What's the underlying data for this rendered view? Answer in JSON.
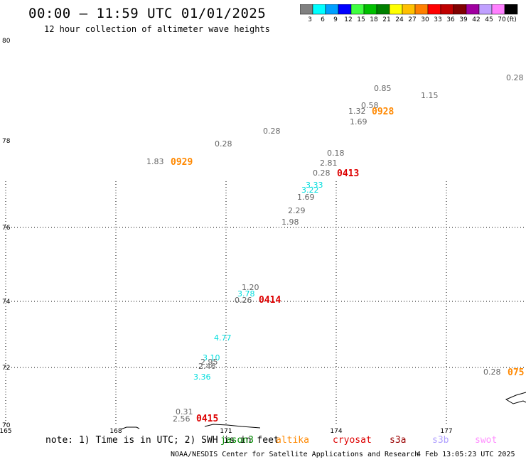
{
  "header": {
    "title": "00:00 – 11:59 UTC 01/01/2025",
    "subtitle": "12 hour collection of altimeter wave heights"
  },
  "legend": {
    "colors": [
      "#808080",
      "#00ffff",
      "#00a0ff",
      "#0000ff",
      "#40ff40",
      "#00c000",
      "#008000",
      "#ffff00",
      "#ffc000",
      "#ff8000",
      "#ff0000",
      "#c00000",
      "#800000",
      "#a000a0",
      "#c0a0ff",
      "#ff80ff",
      "#000000"
    ],
    "labels": [
      "3",
      "6",
      "9",
      "12",
      "15",
      "18",
      "21",
      "24",
      "27",
      "30",
      "33",
      "36",
      "39",
      "42",
      "45",
      "70",
      "(ft)"
    ]
  },
  "axes": {
    "lat_labels": [
      "80",
      "78",
      "76",
      "74",
      "72",
      "70"
    ],
    "lon_labels": [
      "165",
      "168",
      "171",
      "174",
      "177"
    ]
  },
  "values": [
    {
      "text": "0.28",
      "color": "#666666"
    },
    {
      "text": "0.85",
      "color": "#666666"
    },
    {
      "text": "1.15",
      "color": "#666666"
    },
    {
      "text": "0.58",
      "color": "#666666"
    },
    {
      "text": "1.32",
      "color": "#666666"
    },
    {
      "text": "0928",
      "color": "#ff8800"
    },
    {
      "text": "1.69",
      "color": "#666666"
    },
    {
      "text": "0.28",
      "color": "#666666"
    },
    {
      "text": "0.28",
      "color": "#666666"
    },
    {
      "text": "1.83",
      "color": "#666666"
    },
    {
      "text": "0929",
      "color": "#ff8800"
    },
    {
      "text": "0.18",
      "color": "#666666"
    },
    {
      "text": "2.81",
      "color": "#666666"
    },
    {
      "text": "0.28",
      "color": "#666666"
    },
    {
      "text": "0413",
      "color": "#dd0000"
    },
    {
      "text": "3.33",
      "color": "#00dddd"
    },
    {
      "text": "3.22",
      "color": "#00dddd"
    },
    {
      "text": "1.69",
      "color": "#666666"
    },
    {
      "text": "2.29",
      "color": "#666666"
    },
    {
      "text": "1.98",
      "color": "#666666"
    },
    {
      "text": "1.20",
      "color": "#666666"
    },
    {
      "text": "3.78",
      "color": "#00dddd"
    },
    {
      "text": "0.26",
      "color": "#666666"
    },
    {
      "text": "0414",
      "color": "#dd0000"
    },
    {
      "text": "4.77",
      "color": "#00dddd"
    },
    {
      "text": "3.10",
      "color": "#00dddd"
    },
    {
      "text": "2.95",
      "color": "#666666"
    },
    {
      "text": "2.46",
      "color": "#666666"
    },
    {
      "text": "3.36",
      "color": "#00dddd"
    },
    {
      "text": "0.28",
      "color": "#666666"
    },
    {
      "text": "075",
      "color": "#ff8800"
    },
    {
      "text": "0.31",
      "color": "#666666"
    },
    {
      "text": "2.56",
      "color": "#666666"
    },
    {
      "text": "0415",
      "color": "#dd0000"
    }
  ],
  "note": "note: 1) Time is in UTC; 2) SWH is in feet",
  "satellites": [
    {
      "name": "jason3",
      "color": "#008800"
    },
    {
      "name": "altika",
      "color": "#ff8800"
    },
    {
      "name": "cryosat",
      "color": "#dd0000"
    },
    {
      "name": "s3a",
      "color": "#990000"
    },
    {
      "name": "s3b",
      "color": "#b0a0ff"
    },
    {
      "name": "swot",
      "color": "#ff90ff"
    }
  ],
  "footer": {
    "credit": "NOAA/NESDIS Center for Satellite Applications and Research",
    "timestamp": "4 Feb 13:05:23 UTC 2025"
  }
}
